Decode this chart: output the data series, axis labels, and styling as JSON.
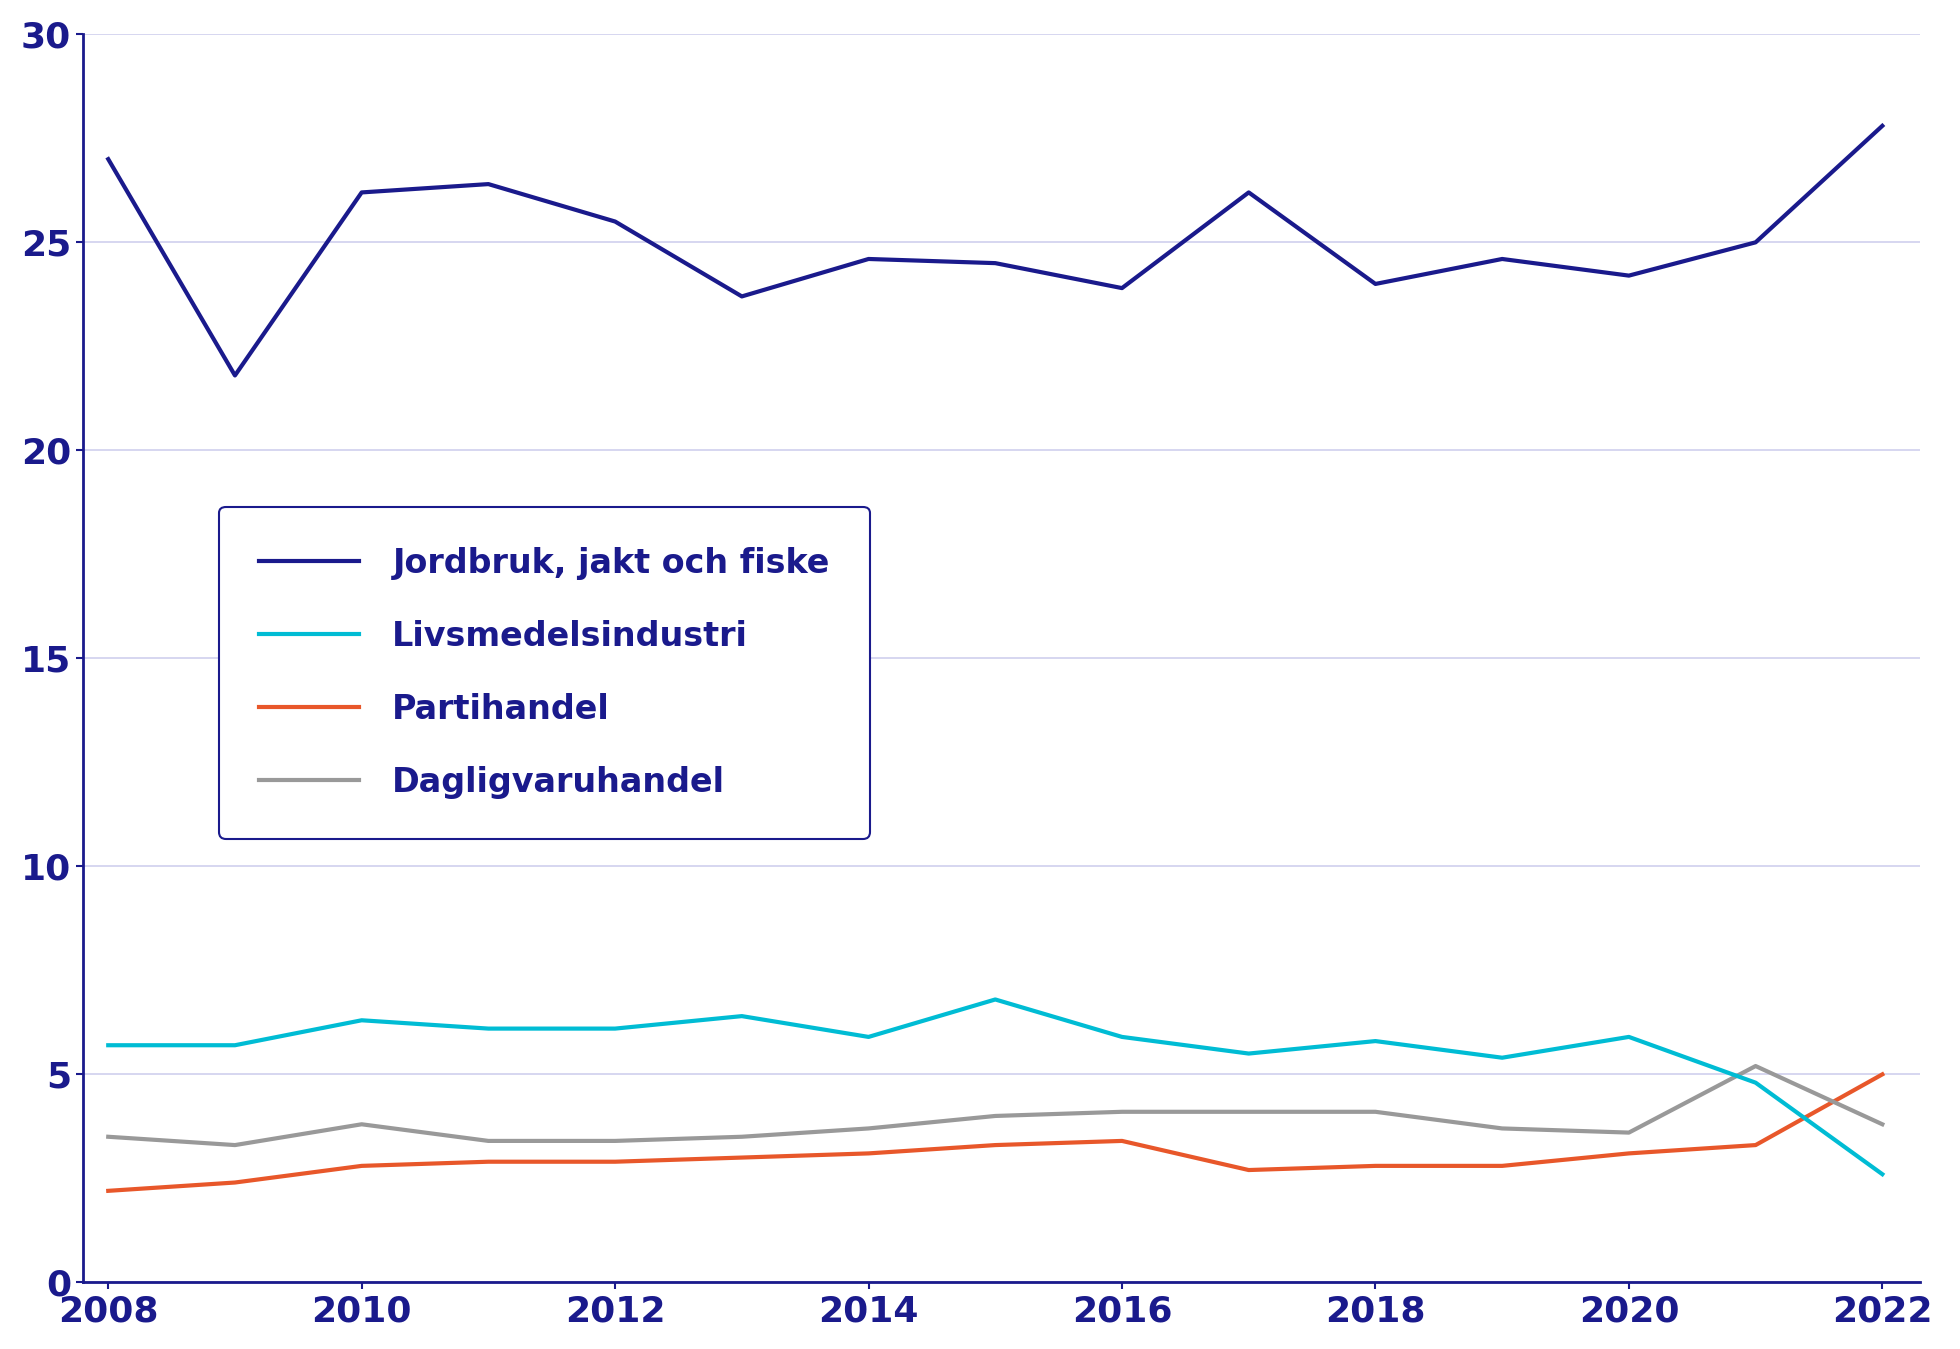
{
  "years": [
    2008,
    2009,
    2010,
    2011,
    2012,
    2013,
    2014,
    2015,
    2016,
    2017,
    2018,
    2019,
    2020,
    2021,
    2022
  ],
  "jordbruk": [
    27.0,
    21.8,
    26.2,
    26.4,
    25.5,
    23.7,
    24.6,
    24.5,
    23.9,
    26.2,
    24.0,
    24.6,
    24.2,
    25.0,
    27.8
  ],
  "livsmedelsindustri": [
    5.7,
    5.7,
    6.3,
    6.1,
    6.1,
    6.4,
    5.9,
    6.8,
    5.9,
    5.5,
    5.8,
    5.4,
    5.9,
    4.8,
    2.6
  ],
  "partihandel": [
    2.2,
    2.4,
    2.8,
    2.9,
    2.9,
    3.0,
    3.1,
    3.3,
    3.4,
    2.7,
    2.8,
    2.8,
    3.1,
    3.3,
    5.0
  ],
  "dagligvaruhandel": [
    3.5,
    3.3,
    3.8,
    3.4,
    3.4,
    3.5,
    3.7,
    4.0,
    4.1,
    4.1,
    4.1,
    3.7,
    3.6,
    5.2,
    3.8
  ],
  "colors": {
    "jordbruk": "#1a1a8c",
    "livsmedelsindustri": "#00bcd4",
    "partihandel": "#e8572a",
    "dagligvaruhandel": "#999999"
  },
  "legend_labels": [
    "Jordbruk, jakt och fiske",
    "Livsmedelsindustri",
    "Partihandel",
    "Dagligvaruhandel"
  ],
  "ylim": [
    0,
    30
  ],
  "yticks": [
    0,
    5,
    10,
    15,
    20,
    25,
    30
  ],
  "xlim": [
    2008,
    2022
  ],
  "xticks": [
    2008,
    2010,
    2012,
    2014,
    2016,
    2018,
    2020,
    2022
  ],
  "background_color": "#ffffff",
  "grid_color": "#d0d0ee",
  "axis_color": "#1a1a8c",
  "tick_color": "#1a1a8c",
  "tick_fontsize": 26,
  "legend_fontsize": 24,
  "line_width": 3.0
}
